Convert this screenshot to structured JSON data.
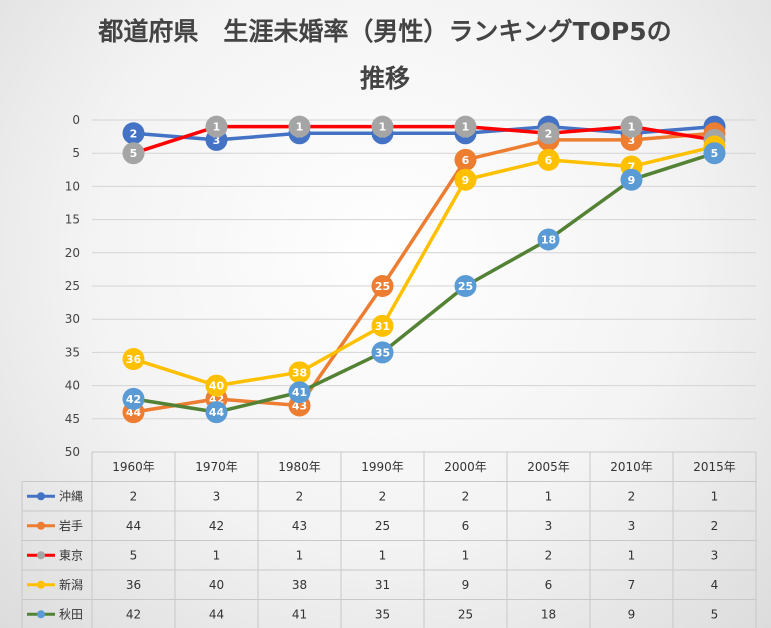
{
  "chart_data": {
    "type": "line",
    "title_line1": "都道府県　生涯未婚率（男性）ランキングTOP5の",
    "title_line2": "推移",
    "categories": [
      "1960年",
      "1970年",
      "1980年",
      "1990年",
      "2000年",
      "2005年",
      "2010年",
      "2015年"
    ],
    "y_axis": {
      "ticks": [
        0,
        5,
        10,
        15,
        20,
        25,
        30,
        35,
        40,
        45,
        50
      ],
      "range": [
        0,
        50
      ],
      "reversed": true
    },
    "grid": true,
    "legend": "data-table",
    "series": [
      {
        "name": "沖縄",
        "color": "#4472C4",
        "values": [
          2,
          3,
          2,
          2,
          2,
          1,
          2,
          1
        ]
      },
      {
        "name": "岩手",
        "color": "#ED7D31",
        "values": [
          44,
          42,
          43,
          25,
          6,
          3,
          3,
          2
        ]
      },
      {
        "name": "東京",
        "color": "#FF0000",
        "marker_color": "#A5A5A5",
        "values": [
          5,
          1,
          1,
          1,
          1,
          2,
          1,
          3
        ]
      },
      {
        "name": "新潟",
        "color": "#FFC000",
        "values": [
          36,
          40,
          38,
          31,
          9,
          6,
          7,
          4
        ]
      },
      {
        "name": "秋田",
        "color": "#548235",
        "marker_color": "#5B9BD5",
        "values": [
          42,
          44,
          41,
          35,
          25,
          18,
          9,
          5
        ]
      }
    ]
  }
}
